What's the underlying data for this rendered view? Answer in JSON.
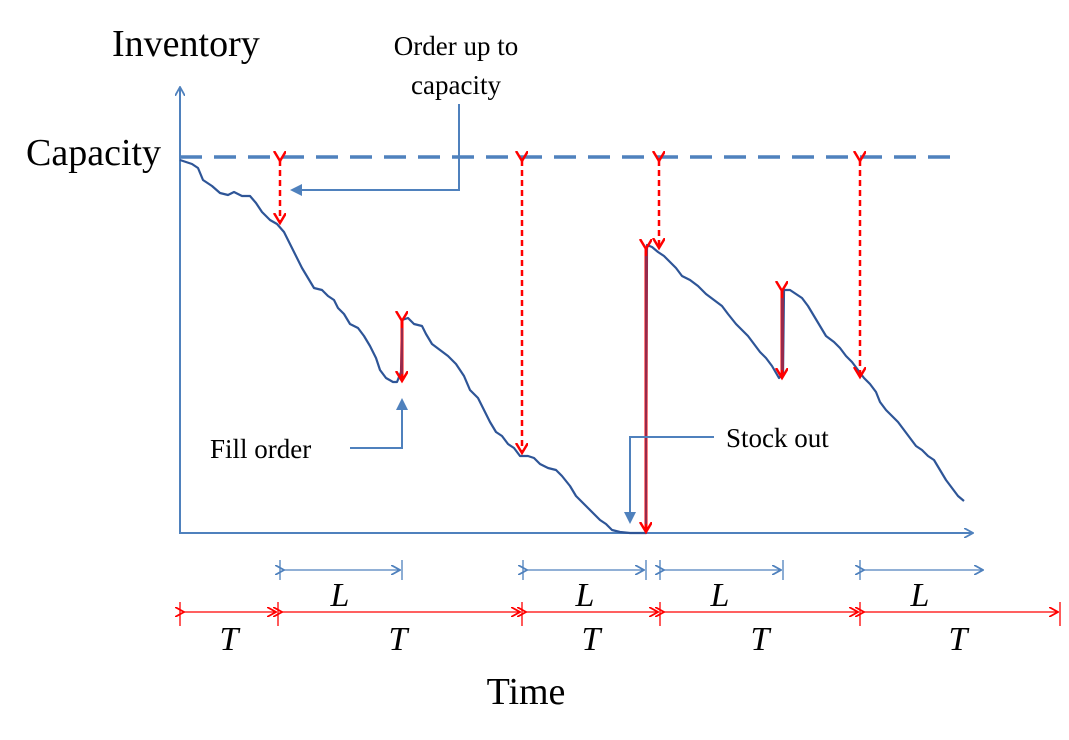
{
  "labels": {
    "y_axis": "Inventory",
    "x_axis": "Time",
    "capacity": "Capacity",
    "order_up_line1": "Order up to",
    "order_up_line2": "capacity",
    "fill_order": "Fill order",
    "stock_out": "Stock out"
  },
  "intervals": {
    "lead_time_symbol": "L",
    "review_period_symbol": "T"
  },
  "colors": {
    "axis": "#4f81bd",
    "inventory_curve": "#2e5597",
    "capacity_line": "#4f81bd",
    "order_arrow": "#ff0000",
    "callout": "#4f81bd",
    "lead_time_arrow": "#4f81bd",
    "period_arrow": "#ff0000",
    "text": "#000000"
  }
}
